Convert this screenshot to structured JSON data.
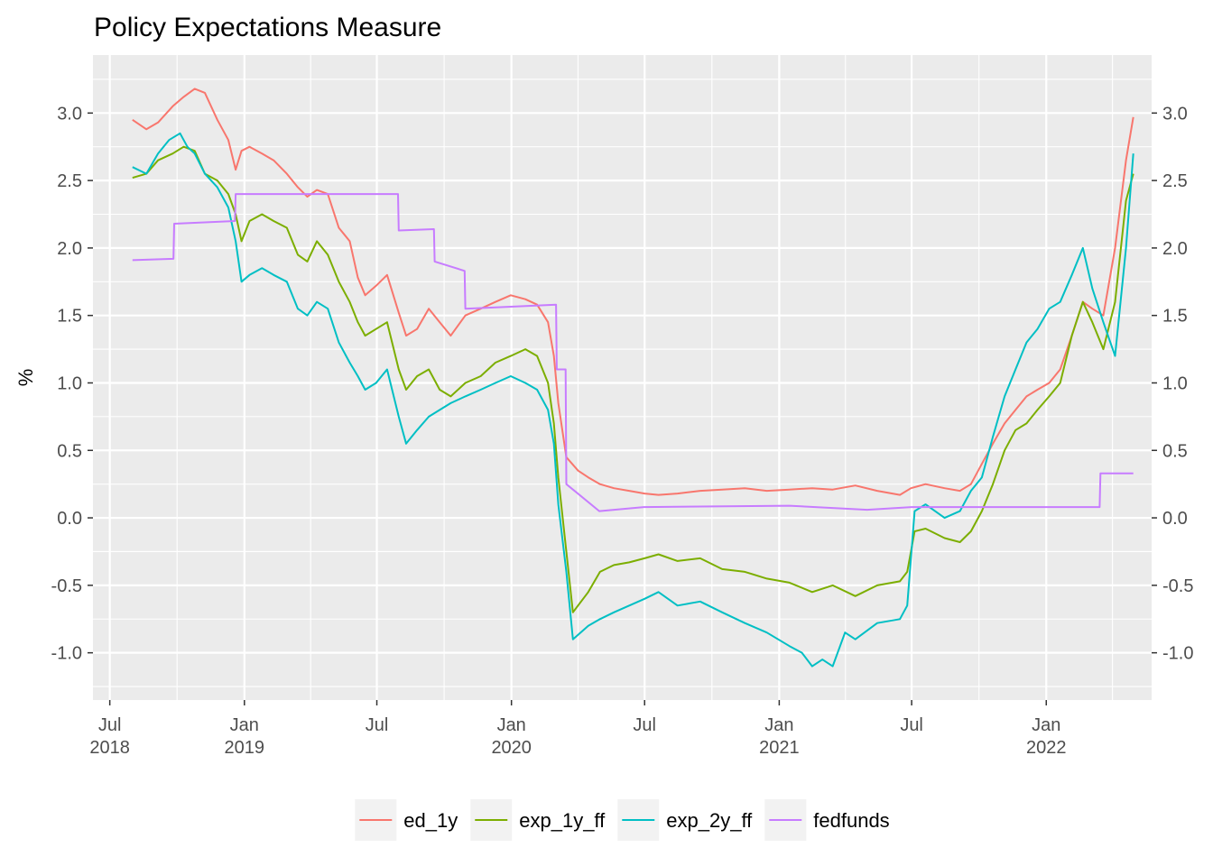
{
  "chart_data": {
    "type": "line",
    "title": "Policy Expectations Measure",
    "xlabel": "",
    "ylabel": "%",
    "xlim": [
      "2018-06-08",
      "2022-05-25"
    ],
    "ylim": [
      -1.35,
      3.43
    ],
    "y_ticks": [
      {
        "value": -1.0,
        "label": "-1.0"
      },
      {
        "value": -0.5,
        "label": "-0.5"
      },
      {
        "value": 0.0,
        "label": "0.0"
      },
      {
        "value": 0.5,
        "label": "0.5"
      },
      {
        "value": 1.0,
        "label": "1.0"
      },
      {
        "value": 1.5,
        "label": "1.5"
      },
      {
        "value": 2.0,
        "label": "2.0"
      },
      {
        "value": 2.5,
        "label": "2.5"
      },
      {
        "value": 3.0,
        "label": "3.0"
      }
    ],
    "x_ticks": [
      {
        "date": "2018-07-01",
        "label_month": "Jul",
        "label_year": "2018"
      },
      {
        "date": "2019-01-01",
        "label_month": "Jan",
        "label_year": "2019"
      },
      {
        "date": "2019-07-01",
        "label_month": "Jul",
        "label_year": ""
      },
      {
        "date": "2020-01-01",
        "label_month": "Jan",
        "label_year": "2020"
      },
      {
        "date": "2020-07-01",
        "label_month": "Jul",
        "label_year": ""
      },
      {
        "date": "2021-01-01",
        "label_month": "Jan",
        "label_year": "2021"
      },
      {
        "date": "2021-07-01",
        "label_month": "Jul",
        "label_year": ""
      },
      {
        "date": "2022-01-01",
        "label_month": "Jan",
        "label_year": "2022"
      }
    ],
    "grid": true,
    "secondary_y_axis": true,
    "legend_position": "bottom",
    "series": [
      {
        "name": "ed_1y",
        "color": "#F8766D",
        "x": [
          "2018-08-01",
          "2018-08-20",
          "2018-09-05",
          "2018-09-25",
          "2018-10-10",
          "2018-10-25",
          "2018-11-08",
          "2018-11-25",
          "2018-12-10",
          "2018-12-20",
          "2018-12-28",
          "2019-01-08",
          "2019-01-25",
          "2019-02-10",
          "2019-02-28",
          "2019-03-15",
          "2019-03-28",
          "2019-04-10",
          "2019-04-25",
          "2019-05-10",
          "2019-05-25",
          "2019-06-05",
          "2019-06-15",
          "2019-06-30",
          "2019-07-15",
          "2019-07-31",
          "2019-08-10",
          "2019-08-25",
          "2019-09-10",
          "2019-09-25",
          "2019-10-10",
          "2019-10-30",
          "2019-11-20",
          "2019-12-10",
          "2019-12-31",
          "2020-01-20",
          "2020-02-05",
          "2020-02-20",
          "2020-02-28",
          "2020-03-05",
          "2020-03-16",
          "2020-04-01",
          "2020-04-15",
          "2020-05-01",
          "2020-05-20",
          "2020-06-10",
          "2020-07-01",
          "2020-07-20",
          "2020-08-15",
          "2020-09-15",
          "2020-10-15",
          "2020-11-15",
          "2020-12-15",
          "2021-01-15",
          "2021-02-15",
          "2021-03-15",
          "2021-04-15",
          "2021-05-15",
          "2021-06-15",
          "2021-06-30",
          "2021-07-20",
          "2021-08-15",
          "2021-09-05",
          "2021-09-20",
          "2021-10-05",
          "2021-10-20",
          "2021-11-05",
          "2021-11-20",
          "2021-12-05",
          "2021-12-20",
          "2022-01-05",
          "2022-01-20",
          "2022-02-05",
          "2022-02-20",
          "2022-03-05",
          "2022-03-20",
          "2022-04-05",
          "2022-04-20",
          "2022-04-30"
        ],
        "values": [
          2.95,
          2.88,
          2.93,
          3.05,
          3.12,
          3.18,
          3.15,
          2.95,
          2.8,
          2.58,
          2.72,
          2.75,
          2.7,
          2.65,
          2.55,
          2.45,
          2.38,
          2.43,
          2.4,
          2.15,
          2.05,
          1.78,
          1.65,
          1.72,
          1.8,
          1.52,
          1.35,
          1.4,
          1.55,
          1.45,
          1.35,
          1.5,
          1.55,
          1.6,
          1.65,
          1.62,
          1.58,
          1.45,
          1.2,
          0.85,
          0.45,
          0.35,
          0.3,
          0.25,
          0.22,
          0.2,
          0.18,
          0.17,
          0.18,
          0.2,
          0.21,
          0.22,
          0.2,
          0.21,
          0.22,
          0.21,
          0.24,
          0.2,
          0.17,
          0.22,
          0.25,
          0.22,
          0.2,
          0.25,
          0.4,
          0.55,
          0.7,
          0.8,
          0.9,
          0.95,
          1.0,
          1.1,
          1.35,
          1.6,
          1.55,
          1.5,
          2.0,
          2.65,
          2.97
        ]
      },
      {
        "name": "exp_1y_ff",
        "color": "#7CAE00",
        "x": [
          "2018-08-01",
          "2018-08-20",
          "2018-09-05",
          "2018-09-25",
          "2018-10-10",
          "2018-10-25",
          "2018-11-08",
          "2018-11-25",
          "2018-12-10",
          "2018-12-20",
          "2018-12-28",
          "2019-01-08",
          "2019-01-25",
          "2019-02-10",
          "2019-02-28",
          "2019-03-15",
          "2019-03-28",
          "2019-04-10",
          "2019-04-25",
          "2019-05-10",
          "2019-05-25",
          "2019-06-05",
          "2019-06-15",
          "2019-06-30",
          "2019-07-15",
          "2019-07-31",
          "2019-08-10",
          "2019-08-25",
          "2019-09-10",
          "2019-09-25",
          "2019-10-10",
          "2019-10-30",
          "2019-11-20",
          "2019-12-10",
          "2019-12-31",
          "2020-01-20",
          "2020-02-05",
          "2020-02-20",
          "2020-02-28",
          "2020-03-05",
          "2020-03-16",
          "2020-03-25",
          "2020-04-15",
          "2020-05-01",
          "2020-05-20",
          "2020-06-10",
          "2020-07-01",
          "2020-07-20",
          "2020-08-15",
          "2020-09-15",
          "2020-10-15",
          "2020-11-15",
          "2020-12-15",
          "2021-01-15",
          "2021-02-15",
          "2021-03-15",
          "2021-04-15",
          "2021-05-15",
          "2021-06-15",
          "2021-06-25",
          "2021-07-05",
          "2021-07-20",
          "2021-08-15",
          "2021-09-05",
          "2021-09-20",
          "2021-10-05",
          "2021-10-20",
          "2021-11-05",
          "2021-11-20",
          "2021-12-05",
          "2021-12-20",
          "2022-01-05",
          "2022-01-20",
          "2022-02-05",
          "2022-02-20",
          "2022-03-05",
          "2022-03-20",
          "2022-04-05",
          "2022-04-20",
          "2022-04-30"
        ],
        "values": [
          2.52,
          2.55,
          2.65,
          2.7,
          2.75,
          2.72,
          2.55,
          2.5,
          2.4,
          2.25,
          2.05,
          2.2,
          2.25,
          2.2,
          2.15,
          1.95,
          1.9,
          2.05,
          1.95,
          1.75,
          1.6,
          1.45,
          1.35,
          1.4,
          1.45,
          1.1,
          0.95,
          1.05,
          1.1,
          0.95,
          0.9,
          1.0,
          1.05,
          1.15,
          1.2,
          1.25,
          1.2,
          1.0,
          0.7,
          0.3,
          -0.25,
          -0.7,
          -0.55,
          -0.4,
          -0.35,
          -0.33,
          -0.3,
          -0.27,
          -0.32,
          -0.3,
          -0.38,
          -0.4,
          -0.45,
          -0.48,
          -0.55,
          -0.5,
          -0.58,
          -0.5,
          -0.47,
          -0.4,
          -0.1,
          -0.08,
          -0.15,
          -0.18,
          -0.1,
          0.05,
          0.25,
          0.5,
          0.65,
          0.7,
          0.8,
          0.9,
          1.0,
          1.35,
          1.6,
          1.45,
          1.25,
          1.6,
          2.35,
          2.55
        ]
      },
      {
        "name": "exp_2y_ff",
        "color": "#00BFC4",
        "x": [
          "2018-08-01",
          "2018-08-20",
          "2018-09-05",
          "2018-09-20",
          "2018-10-05",
          "2018-10-15",
          "2018-10-25",
          "2018-11-08",
          "2018-11-25",
          "2018-12-10",
          "2018-12-20",
          "2018-12-28",
          "2019-01-08",
          "2019-01-25",
          "2019-02-10",
          "2019-02-28",
          "2019-03-15",
          "2019-03-28",
          "2019-04-10",
          "2019-04-25",
          "2019-05-10",
          "2019-05-25",
          "2019-06-05",
          "2019-06-15",
          "2019-06-30",
          "2019-07-15",
          "2019-07-31",
          "2019-08-10",
          "2019-08-25",
          "2019-09-10",
          "2019-09-25",
          "2019-10-10",
          "2019-10-30",
          "2019-11-20",
          "2019-12-10",
          "2019-12-31",
          "2020-01-20",
          "2020-02-05",
          "2020-02-20",
          "2020-02-28",
          "2020-03-05",
          "2020-03-16",
          "2020-03-25",
          "2020-04-15",
          "2020-05-01",
          "2020-05-20",
          "2020-06-10",
          "2020-07-01",
          "2020-07-20",
          "2020-08-15",
          "2020-09-15",
          "2020-10-15",
          "2020-11-15",
          "2020-12-15",
          "2021-01-15",
          "2021-02-01",
          "2021-02-15",
          "2021-03-01",
          "2021-03-15",
          "2021-04-01",
          "2021-04-15",
          "2021-05-15",
          "2021-06-15",
          "2021-06-25",
          "2021-07-05",
          "2021-07-20",
          "2021-08-15",
          "2021-09-05",
          "2021-09-20",
          "2021-10-05",
          "2021-10-20",
          "2021-11-05",
          "2021-11-20",
          "2021-12-05",
          "2021-12-20",
          "2022-01-05",
          "2022-01-20",
          "2022-02-05",
          "2022-02-20",
          "2022-03-05",
          "2022-03-20",
          "2022-04-05",
          "2022-04-20",
          "2022-04-30"
        ],
        "values": [
          2.6,
          2.55,
          2.7,
          2.8,
          2.85,
          2.75,
          2.7,
          2.55,
          2.45,
          2.3,
          2.05,
          1.75,
          1.8,
          1.85,
          1.8,
          1.75,
          1.55,
          1.5,
          1.6,
          1.55,
          1.3,
          1.15,
          1.05,
          0.95,
          1.0,
          1.1,
          0.75,
          0.55,
          0.65,
          0.75,
          0.8,
          0.85,
          0.9,
          0.95,
          1.0,
          1.05,
          1.0,
          0.95,
          0.8,
          0.55,
          0.1,
          -0.4,
          -0.9,
          -0.8,
          -0.75,
          -0.7,
          -0.65,
          -0.6,
          -0.55,
          -0.65,
          -0.62,
          -0.7,
          -0.78,
          -0.85,
          -0.95,
          -1.0,
          -1.1,
          -1.05,
          -1.1,
          -0.85,
          -0.9,
          -0.78,
          -0.75,
          -0.65,
          0.05,
          0.1,
          0.0,
          0.05,
          0.2,
          0.3,
          0.6,
          0.9,
          1.1,
          1.3,
          1.4,
          1.55,
          1.6,
          1.8,
          2.0,
          1.7,
          1.45,
          1.2,
          2.0,
          2.7
        ]
      },
      {
        "name": "fedfunds",
        "color": "#C77CFF",
        "x": [
          "2018-08-01",
          "2018-09-26",
          "2018-09-27",
          "2018-12-19",
          "2018-12-20",
          "2019-07-30",
          "2019-07-31",
          "2019-09-17",
          "2019-09-18",
          "2019-10-29",
          "2019-10-30",
          "2020-03-02",
          "2020-03-03",
          "2020-03-15",
          "2020-03-16",
          "2020-04-30",
          "2020-06-30",
          "2021-01-15",
          "2021-05-01",
          "2021-07-01",
          "2022-03-15",
          "2022-03-16",
          "2022-04-30"
        ],
        "values": [
          1.91,
          1.92,
          2.18,
          2.2,
          2.4,
          2.4,
          2.13,
          2.14,
          1.9,
          1.83,
          1.55,
          1.58,
          1.1,
          1.1,
          0.25,
          0.05,
          0.08,
          0.09,
          0.06,
          0.08,
          0.08,
          0.33,
          0.33
        ]
      }
    ]
  }
}
